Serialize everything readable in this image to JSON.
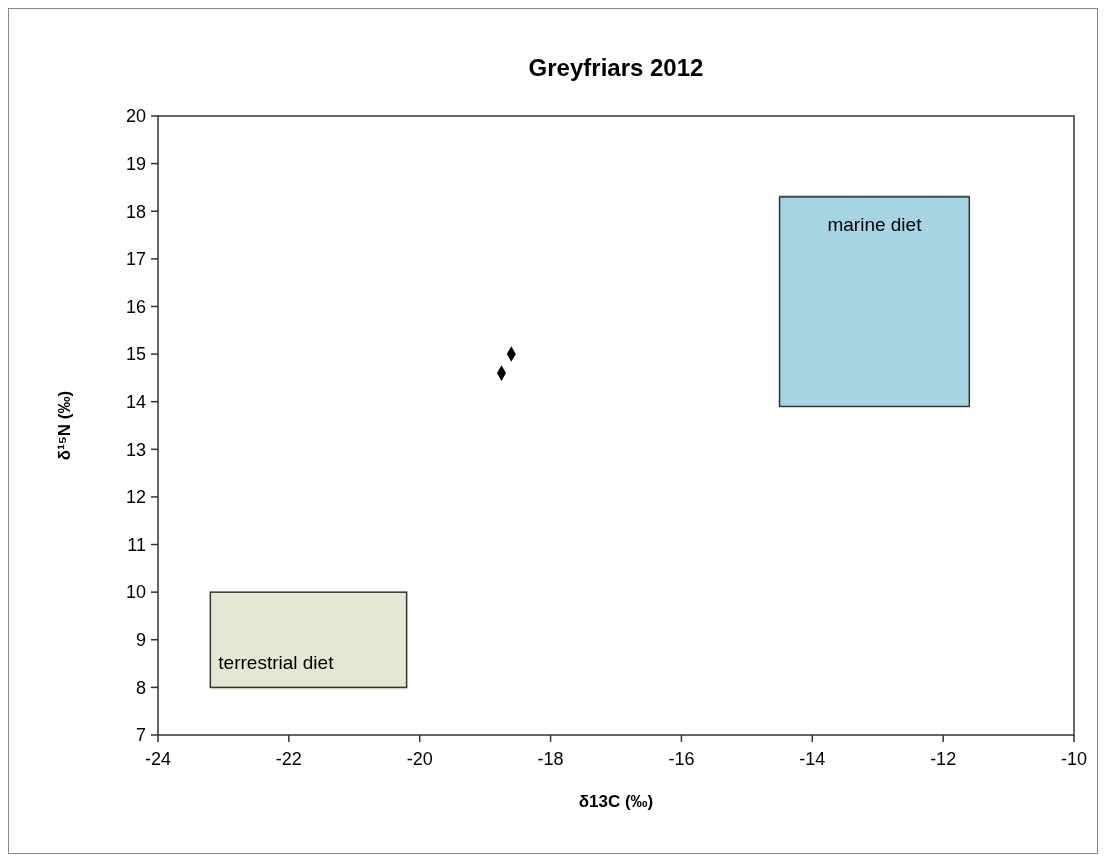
{
  "chart_data": {
    "type": "scatter",
    "title": "Greyfriars 2012",
    "xlabel": "δ13C (‰)",
    "ylabel": "δ¹⁵N  (‰)",
    "xlim": [
      -24,
      -10
    ],
    "xticks": [
      -24,
      -22,
      -20,
      -18,
      -16,
      -14,
      -12,
      -10
    ],
    "ylim": [
      7,
      20
    ],
    "yticks": [
      7,
      8,
      9,
      10,
      11,
      12,
      13,
      14,
      15,
      16,
      17,
      18,
      19,
      20
    ],
    "grid": false,
    "legend": false,
    "series": [
      {
        "type": "line",
        "name": "terrestrial diet",
        "color": "#e3e8d3",
        "x": [
          -23.2,
          -20.2
        ],
        "values": [
          8,
          8
        ],
        "lower": [
          8,
          8
        ],
        "upper": [
          10,
          10
        ]
      },
      {
        "type": "line",
        "name": "marine diet",
        "color": "#a6d4e3",
        "x": [
          -14.5,
          -11.6
        ],
        "values": [
          18.3,
          18.3
        ],
        "lower": [
          13.9,
          13.9
        ],
        "upper": [
          18.3,
          18.3
        ]
      },
      {
        "color": "#000000",
        "marker": "diamond",
        "x": [
          -18.6,
          -18.75
        ],
        "values": [
          15,
          14.6
        ]
      }
    ]
  }
}
